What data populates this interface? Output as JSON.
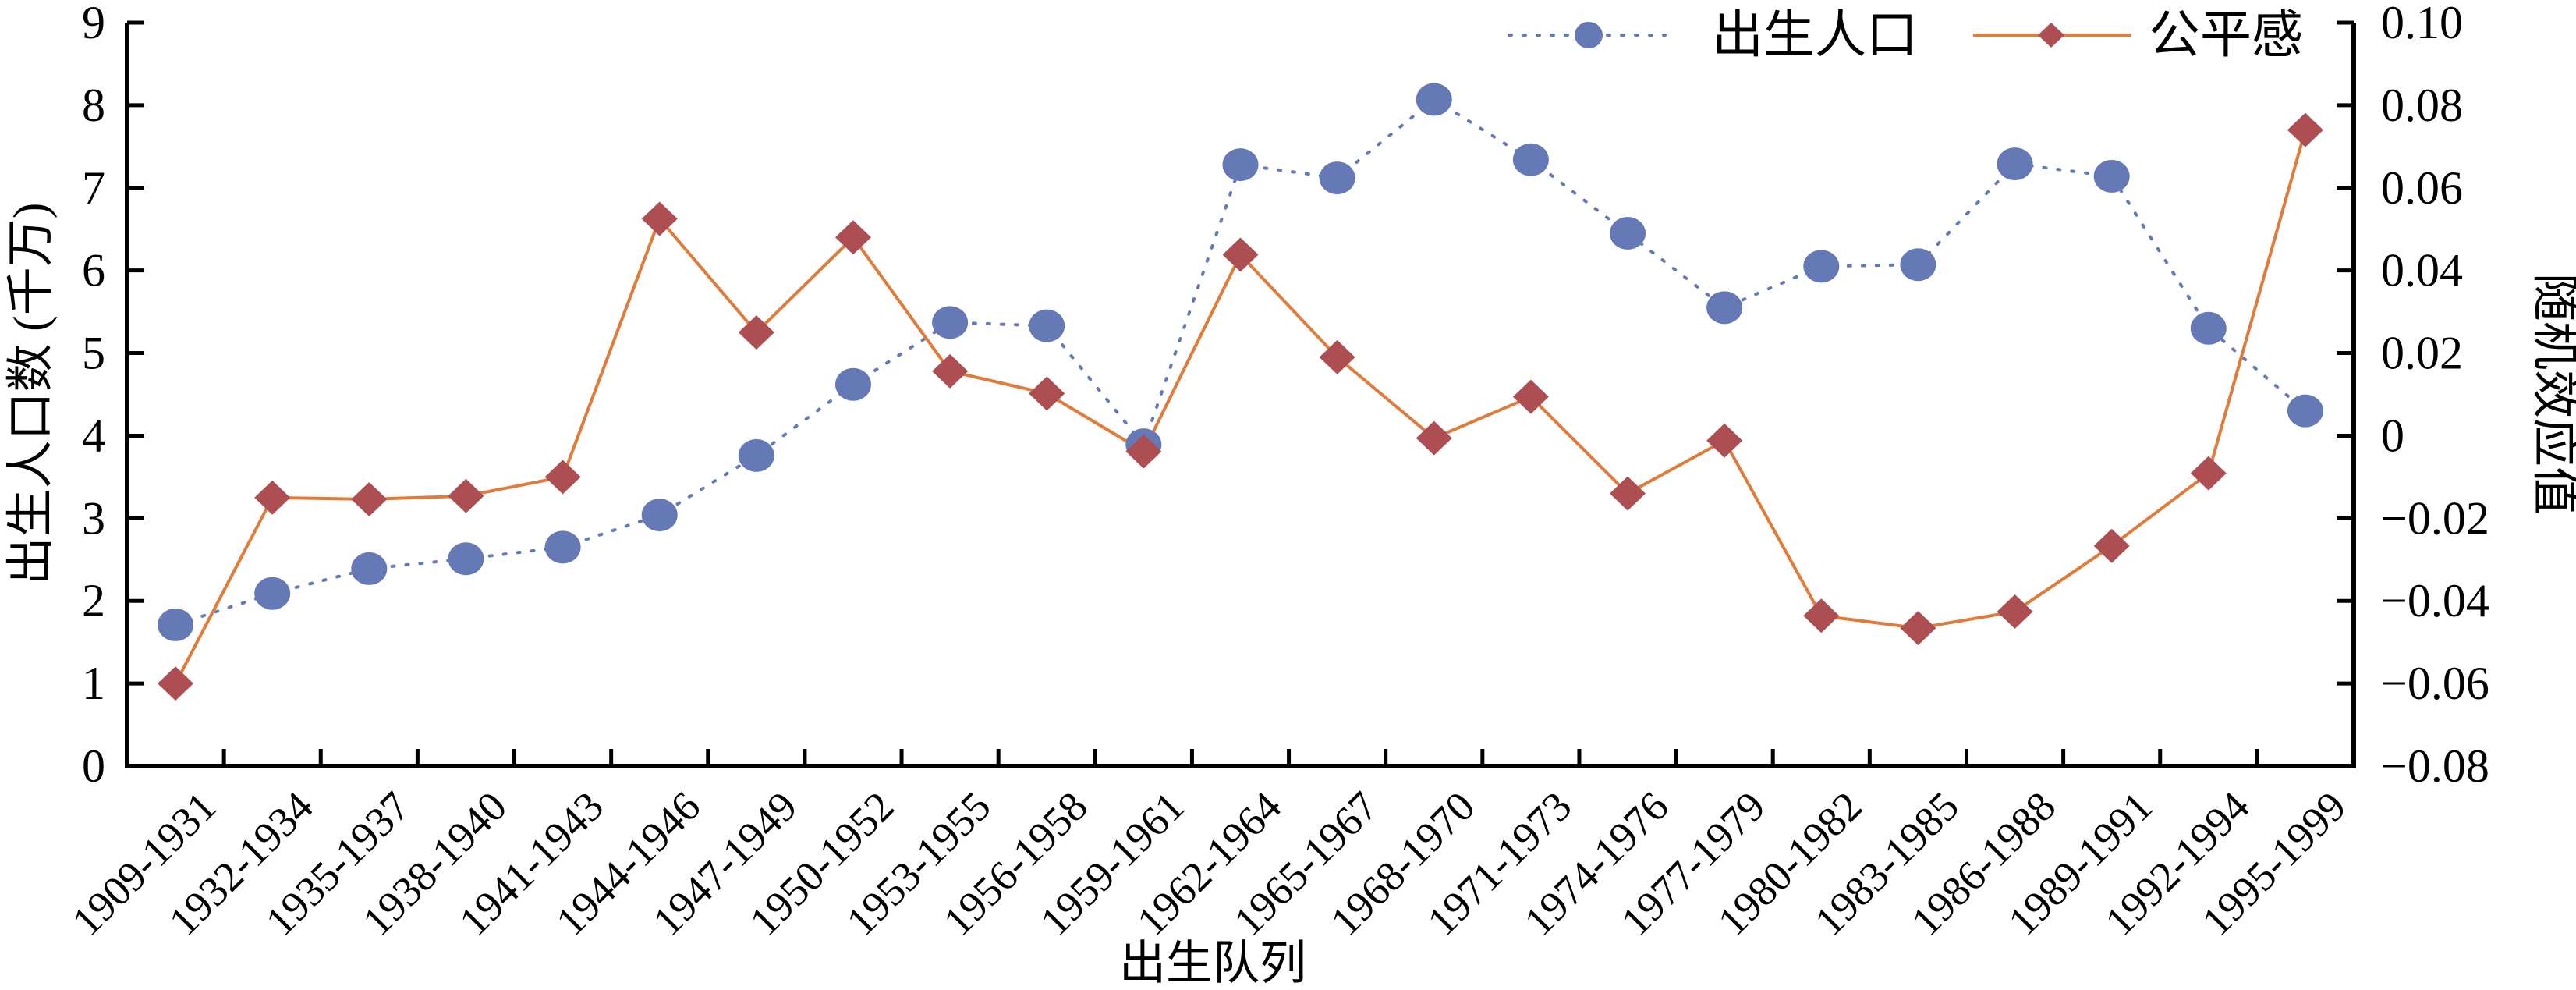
{
  "chart_data": {
    "type": "line",
    "xlabel": "出生队列",
    "ylabel_left": "出生人口数 (千万)",
    "ylabel_right": "随机效应值",
    "categories": [
      "1909-1931",
      "1932-1934",
      "1935-1937",
      "1938-1940",
      "1941-1943",
      "1944-1946",
      "1947-1949",
      "1950-1952",
      "1953-1955",
      "1956-1958",
      "1959-1961",
      "1962-1964",
      "1965-1967",
      "1968-1970",
      "1971-1973",
      "1974-1976",
      "1977-1979",
      "1980-1982",
      "1983-1985",
      "1986-1988",
      "1989-1991",
      "1992-1994",
      "1995-1999"
    ],
    "ylim_left": [
      0,
      9
    ],
    "yticks_left": [
      "0",
      "1",
      "2",
      "3",
      "4",
      "5",
      "6",
      "7",
      "8",
      "9"
    ],
    "ylim_right": [
      -0.08,
      0.1
    ],
    "yticks_right": [
      "−0.08",
      "−0.06",
      "−0.04",
      "−0.02",
      "0",
      "0.02",
      "0.04",
      "0.06",
      "0.08",
      "0.10"
    ],
    "grid": false,
    "legend_position": "top-right",
    "series": [
      {
        "name": "出生人口",
        "axis": "left",
        "marker": "circle",
        "line_style": "dotted",
        "color": "#6479B5",
        "values": [
          1.71,
          2.09,
          2.39,
          2.51,
          2.65,
          3.04,
          3.76,
          4.62,
          5.37,
          5.33,
          3.89,
          7.28,
          7.12,
          8.07,
          7.34,
          6.45,
          5.55,
          6.05,
          6.07,
          7.29,
          7.14,
          5.3,
          4.3
        ]
      },
      {
        "name": "公平感",
        "axis": "right",
        "marker": "diamond",
        "line_style": "solid",
        "color": "#E07B39",
        "marker_color": "#AD4E52",
        "values": [
          -0.06,
          -0.015,
          -0.0154,
          -0.0146,
          -0.01,
          0.0525,
          0.025,
          0.048,
          0.0156,
          0.0102,
          -0.0038,
          0.0438,
          0.019,
          -0.0006,
          0.0094,
          -0.014,
          -0.0012,
          -0.0436,
          -0.0466,
          -0.0426,
          -0.0267,
          -0.0091,
          0.074
        ]
      }
    ]
  }
}
